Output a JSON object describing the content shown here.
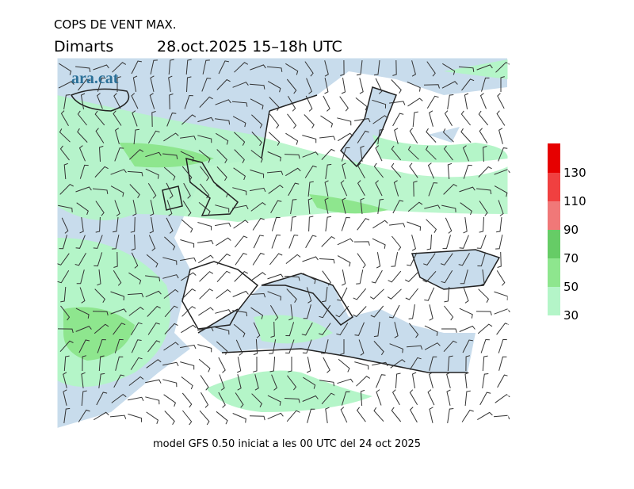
{
  "header": {
    "title": "COPS DE VENT MAX.",
    "day": "Dimarts",
    "period": "28.oct.2025 15–18h UTC"
  },
  "logo": "ara.cat",
  "footer": "model GFS 0.50 iniciat a les 00 UTC del 24 oct 2025",
  "legend": {
    "levels": [
      30,
      50,
      70,
      90,
      110,
      130
    ],
    "colors": [
      "#b4f5c8",
      "#8ee68e",
      "#66cc66",
      "#f07878",
      "#f04040",
      "#e60000"
    ]
  }
}
